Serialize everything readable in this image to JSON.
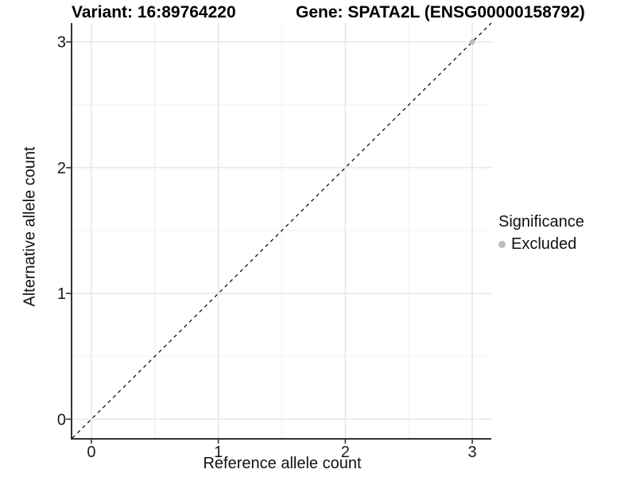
{
  "header": {
    "variant_title": "Variant: 16:89764220",
    "gene_title": "Gene: SPATA2L (ENSG00000158792)"
  },
  "legend": {
    "title": "Significance",
    "items": [
      {
        "label": "Excluded",
        "color": "#bdbdbd"
      }
    ]
  },
  "chart_data": {
    "type": "scatter",
    "title": "Variant: 16:89764220 — Gene: SPATA2L (ENSG00000158792)",
    "xlabel": "Reference allele count",
    "ylabel": "Alternative allele count",
    "xlim": [
      -0.15,
      3.15
    ],
    "ylim": [
      -0.15,
      3.15
    ],
    "x_ticks": [
      0,
      1,
      2,
      3
    ],
    "y_ticks": [
      0,
      1,
      2,
      3
    ],
    "x_minor_ticks": [
      0.5,
      1.5,
      2.5
    ],
    "y_minor_ticks": [
      0.5,
      1.5,
      2.5
    ],
    "grid": true,
    "legend_position": "right",
    "reference_line": {
      "type": "identity",
      "equation": "y = x",
      "style": "dashed",
      "color": "#111111"
    },
    "series": [
      {
        "name": "Excluded",
        "color": "#bdbdbd",
        "points": [
          {
            "x": 3,
            "y": 3
          }
        ]
      }
    ],
    "colors": {
      "axis_line": "#333333",
      "major_grid": "#e4e4e4",
      "minor_grid": "#f0f0f0",
      "tick_text": "#1a1a1a"
    }
  }
}
